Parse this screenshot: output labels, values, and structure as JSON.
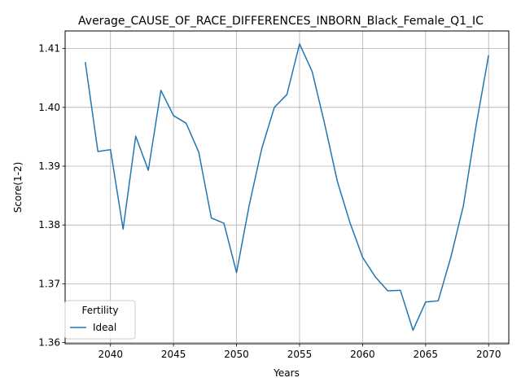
{
  "chart_data": {
    "type": "line",
    "title": "Average_CAUSE_OF_RACE_DIFFERENCES_INBORN_Black_Female_Q1_IC",
    "xlabel": "Years",
    "ylabel": "Score(1-2)",
    "xlim": [
      2036.4,
      2071.6
    ],
    "ylim": [
      1.3598,
      1.413
    ],
    "xticks": [
      2040,
      2045,
      2050,
      2055,
      2060,
      2065,
      2070
    ],
    "yticks": [
      1.36,
      1.37,
      1.38,
      1.39,
      1.4,
      1.41
    ],
    "ytick_labels": [
      "1.36",
      "1.37",
      "1.38",
      "1.39",
      "1.40",
      "1.41"
    ],
    "grid": true,
    "legend": {
      "title": "Fertility",
      "placement": "lower-left"
    },
    "series": [
      {
        "name": "Ideal",
        "color": "#1f77b4",
        "x": [
          2038,
          2039,
          2040,
          2041,
          2042,
          2043,
          2044,
          2045,
          2046,
          2047,
          2048,
          2049,
          2050,
          2051,
          2052,
          2053,
          2054,
          2055,
          2056,
          2057,
          2058,
          2059,
          2060,
          2061,
          2062,
          2063,
          2064,
          2065,
          2066,
          2067,
          2068,
          2069,
          2070
        ],
        "y": [
          1.4077,
          1.3925,
          1.3928,
          1.3793,
          1.3951,
          1.3893,
          1.4029,
          1.3986,
          1.3973,
          1.3924,
          1.3812,
          1.3803,
          1.3719,
          1.3833,
          1.393,
          1.4,
          1.4022,
          1.4108,
          1.4061,
          1.3971,
          1.3874,
          1.3804,
          1.3745,
          1.3712,
          1.3688,
          1.3689,
          1.3621,
          1.3669,
          1.3671,
          1.3745,
          1.3833,
          1.3968,
          1.4089
        ]
      }
    ]
  }
}
